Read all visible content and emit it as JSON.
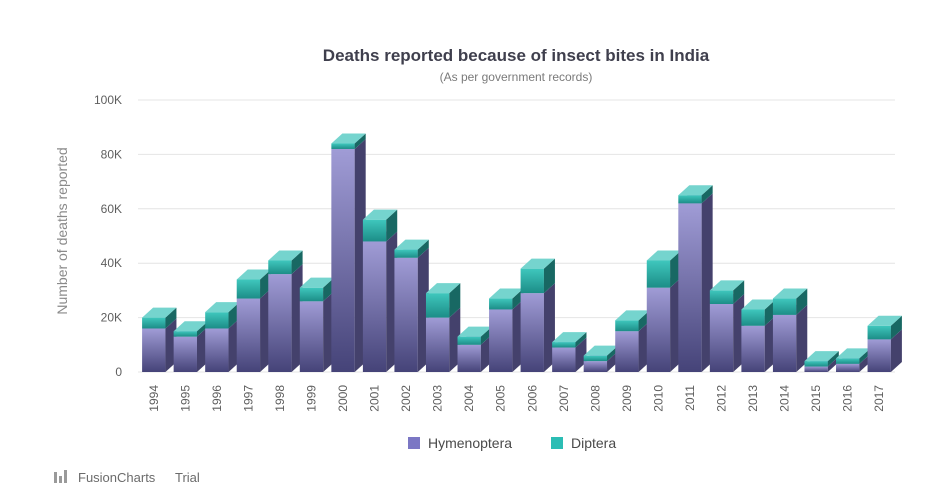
{
  "chart_data": {
    "type": "bar",
    "stacked": true,
    "style": "3d",
    "title": "Deaths reported because of insect bites in India",
    "subtitle": "(As per government records)",
    "ylabel": "Number of deaths reported",
    "xlabel": "",
    "ylim": [
      0,
      100000
    ],
    "yticks": [
      "0",
      "20K",
      "40K",
      "60K",
      "80K",
      "100K"
    ],
    "ytick_values": [
      0,
      20000,
      40000,
      60000,
      80000,
      100000
    ],
    "grid": true,
    "legend_position": "bottom",
    "categories": [
      "1994",
      "1995",
      "1996",
      "1997",
      "1998",
      "1999",
      "2000",
      "2001",
      "2002",
      "2003",
      "2004",
      "2005",
      "2006",
      "2007",
      "2008",
      "2009",
      "2010",
      "2011",
      "2012",
      "2013",
      "2014",
      "2015",
      "2016",
      "2017"
    ],
    "series": [
      {
        "name": "Hymenoptera",
        "color": "#7b77c4",
        "values": [
          16000,
          13000,
          16000,
          27000,
          36000,
          26000,
          82000,
          48000,
          42000,
          20000,
          10000,
          23000,
          29000,
          9000,
          4000,
          15000,
          31000,
          62000,
          25000,
          17000,
          21000,
          2000,
          3000,
          12000
        ]
      },
      {
        "name": "Diptera",
        "color": "#2bbdb4",
        "values": [
          4000,
          2000,
          6000,
          7000,
          5000,
          5000,
          2000,
          8000,
          3000,
          9000,
          3000,
          4000,
          9000,
          2000,
          2000,
          4000,
          10000,
          3000,
          5000,
          6000,
          6000,
          2000,
          2000,
          5000
        ]
      }
    ]
  },
  "credit": {
    "brand": "FusionCharts",
    "suffix": "Trial",
    "icon": "fusioncharts-logo-icon"
  }
}
